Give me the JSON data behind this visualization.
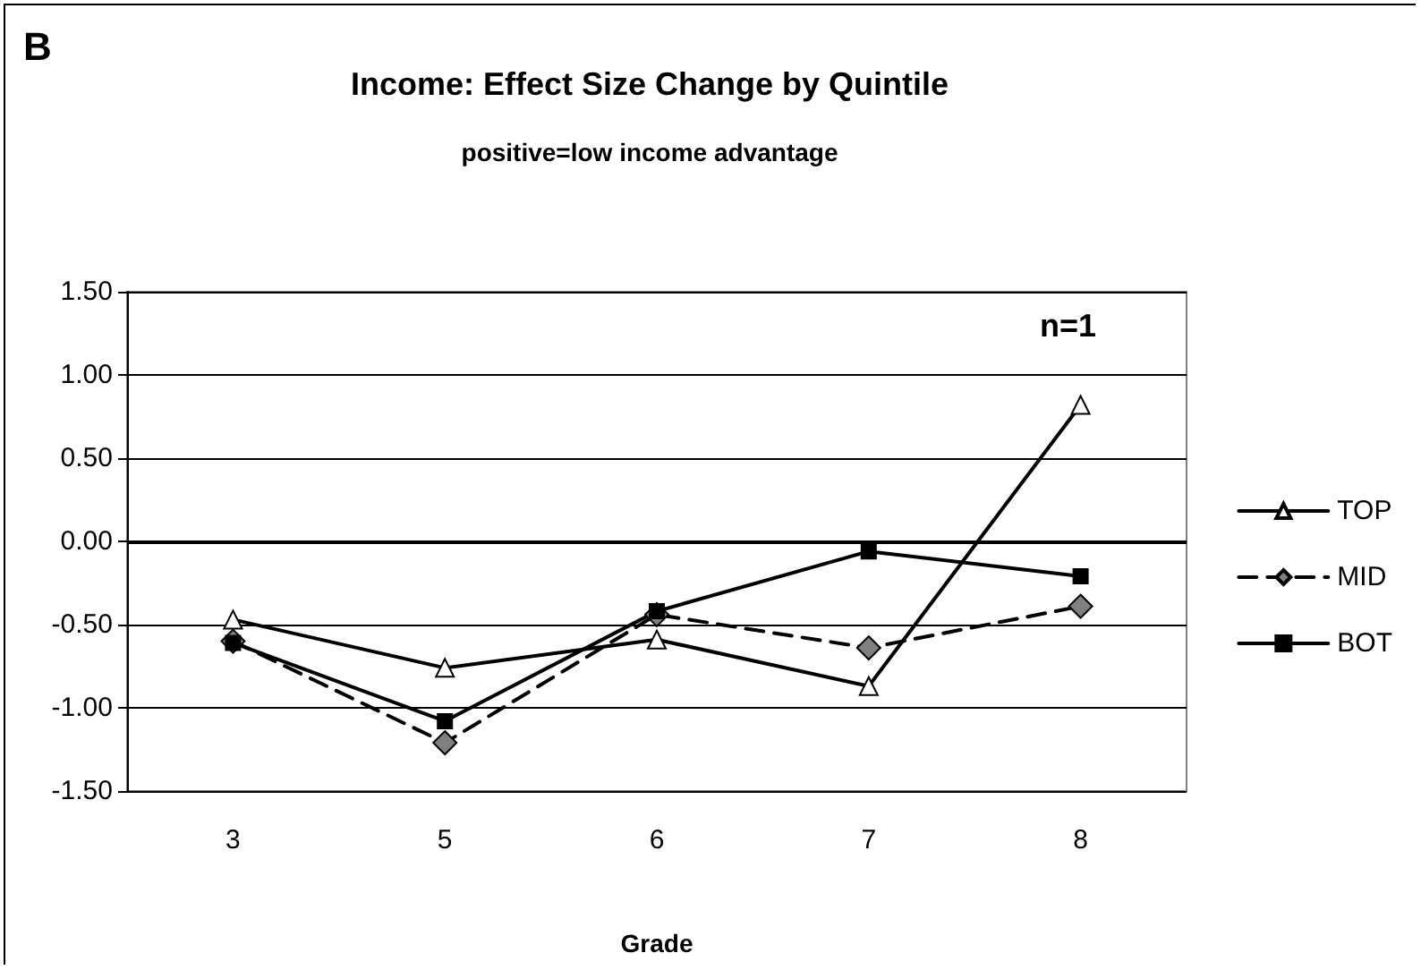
{
  "chart_data": {
    "type": "line",
    "title": "Income: Effect Size Change by Quintile",
    "subtitle": "positive=low income advantage",
    "xlabel": "Grade",
    "annotations": [
      "B",
      "n=1"
    ],
    "categories": [
      "3",
      "5",
      "6",
      "7",
      "8"
    ],
    "series": [
      {
        "name": "TOP",
        "color": "#000000",
        "marker": "triangle",
        "line_style": "solid",
        "values": [
          -0.47,
          -0.76,
          -0.59,
          -0.87,
          0.82
        ]
      },
      {
        "name": "MID",
        "color": "#000000",
        "marker": "diamond",
        "line_style": "dashed",
        "values": [
          -0.6,
          -1.21,
          -0.44,
          -0.64,
          -0.39
        ]
      },
      {
        "name": "BOT",
        "color": "#000000",
        "marker": "square",
        "line_style": "solid",
        "values": [
          -0.61,
          -1.08,
          -0.42,
          -0.06,
          -0.21
        ]
      }
    ],
    "ylim": [
      -1.5,
      1.5
    ],
    "yticks": [
      {
        "value": -1.5,
        "label": "-1.50"
      },
      {
        "value": -1,
        "label": "-1.00"
      },
      {
        "value": -0.5,
        "label": "-0.50"
      },
      {
        "value": 0,
        "label": "0.00"
      },
      {
        "value": 0.5,
        "label": "0.50"
      },
      {
        "value": 1,
        "label": "1.00"
      },
      {
        "value": 1.5,
        "label": "1.50"
      }
    ],
    "ref_lines": [
      {
        "axis": "y",
        "value": 0,
        "color": "#000000"
      }
    ],
    "grid": "y",
    "legend": "right"
  }
}
